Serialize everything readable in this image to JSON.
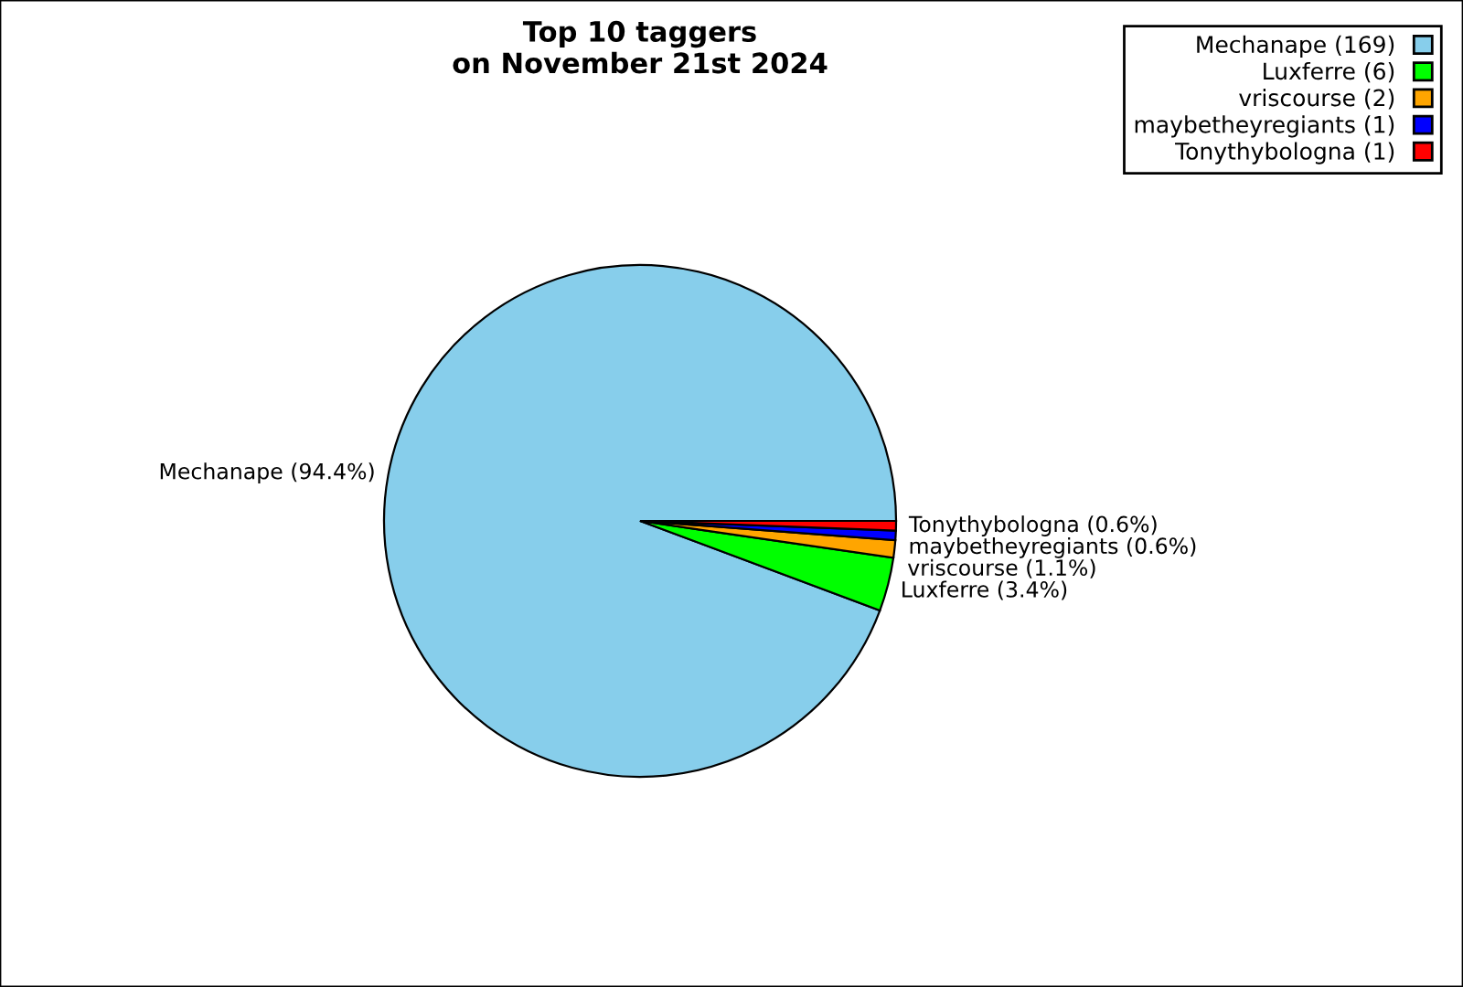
{
  "chart_data": {
    "type": "pie",
    "title": "Top 10 taggers\non November 21st 2024",
    "categories": [
      "Mechanape (169)",
      "Luxferre (6)",
      "vriscourse (2)",
      "maybetheyregiants (1)",
      "Tonythybologna (1)"
    ],
    "values": [
      94.4,
      3.4,
      1.1,
      0.6,
      0.6
    ],
    "value_labels": [
      "Mechanape (94.4%)",
      "Luxferre (3.4%)",
      "vriscourse (1.1%)",
      "maybetheyregiants (0.6%)",
      "Tonythybologna (0.6%)"
    ],
    "colors": [
      "#87ceeb",
      "#00ff00",
      "#ffa500",
      "#0000ff",
      "#ff0000"
    ],
    "legend": "top right"
  }
}
